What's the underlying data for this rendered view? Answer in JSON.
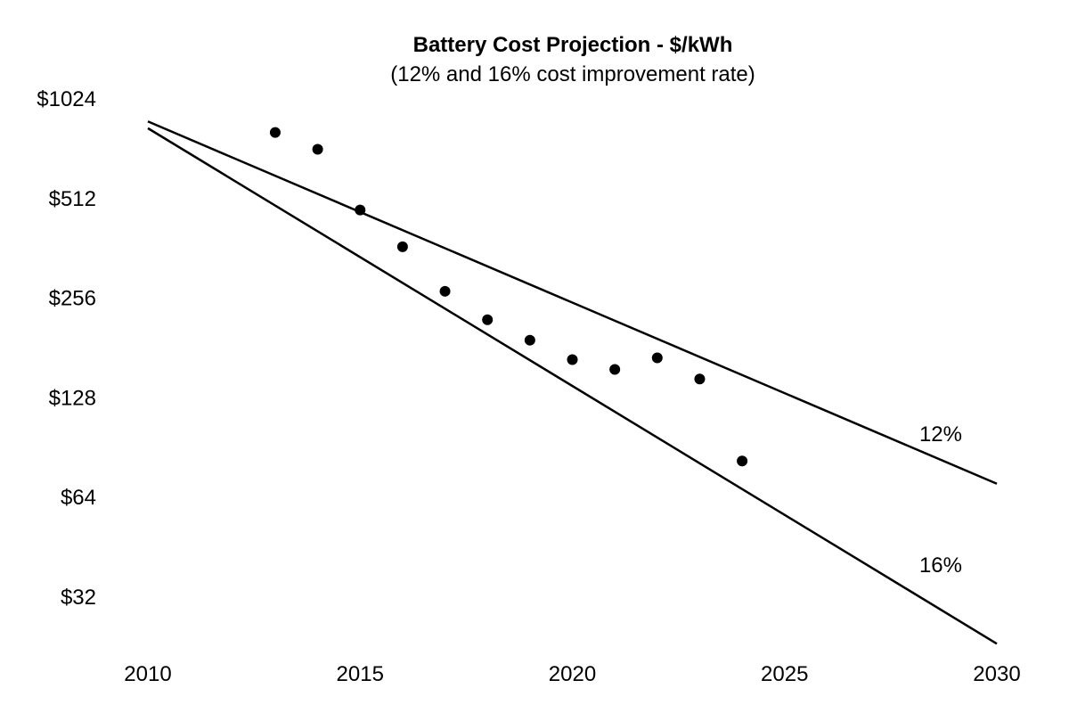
{
  "chart_data": {
    "type": "scatter",
    "title": "Battery Cost Projection - $/kWh",
    "subtitle": "(12% and 16% cost improvement rate)",
    "xlabel": "",
    "ylabel": "",
    "y_scale": "log2",
    "xlim": [
      2010,
      2030
    ],
    "ylim": [
      22,
      1024
    ],
    "x_ticks": [
      2010,
      2015,
      2020,
      2025,
      2030
    ],
    "x_tick_labels": [
      "2010",
      "2015",
      "2020",
      "2025",
      "2030"
    ],
    "y_ticks": [
      1024,
      512,
      256,
      128,
      64,
      32
    ],
    "y_tick_labels": [
      "$1024",
      "$512",
      "$256",
      "$128",
      "$64",
      "$32"
    ],
    "points": {
      "x": [
        2013,
        2014,
        2015,
        2016,
        2017,
        2018,
        2019,
        2020,
        2021,
        2022,
        2023,
        2024
      ],
      "y": [
        806,
        717,
        470,
        364,
        267,
        219,
        190,
        166,
        155,
        168,
        145,
        82
      ]
    },
    "series": [
      {
        "name": "12%",
        "label": "12%",
        "x": [
          2010,
          2030
        ],
        "y": [
          870,
          70
        ]
      },
      {
        "name": "16%",
        "label": "16%",
        "x": [
          2010,
          2030
        ],
        "y": [
          830,
          23
        ]
      }
    ],
    "grid": false,
    "legend": "inline labels at right end of lines"
  }
}
